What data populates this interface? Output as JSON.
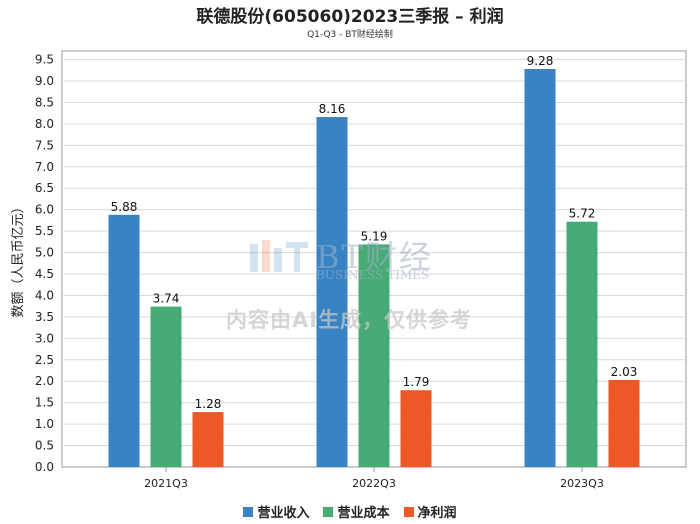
{
  "title": "联德股份(605060)2023三季报 – 利润",
  "subtitle": "Q1-Q3 - BT财经绘制",
  "watermark": {
    "brand": "BT财经",
    "brand_sub": "BUSINESS TIMES",
    "notice": "内容由AI生成，仅供参考"
  },
  "colors": {
    "营业收入": "#3783c3",
    "营业成本": "#46ab75",
    "净利润": "#ee5827"
  },
  "chart_data": {
    "type": "bar",
    "categories": [
      "2021Q3",
      "2022Q3",
      "2023Q3"
    ],
    "series": [
      {
        "name": "营业收入",
        "values": [
          5.88,
          8.16,
          9.28
        ]
      },
      {
        "name": "营业成本",
        "values": [
          3.74,
          5.19,
          5.72
        ]
      },
      {
        "name": "净利润",
        "values": [
          1.28,
          1.79,
          2.03
        ]
      }
    ],
    "ylabel": "数额（人民币亿元）",
    "xlabel": "",
    "ylim": [
      0,
      9.7
    ],
    "yticks": [
      "0.0",
      "0.5",
      "1.0",
      "1.5",
      "2.0",
      "2.5",
      "3.0",
      "3.5",
      "4.0",
      "4.5",
      "5.0",
      "5.5",
      "6.0",
      "6.5",
      "7.0",
      "7.5",
      "8.0",
      "8.5",
      "9.0",
      "9.5"
    ],
    "grid": true,
    "legend_position": "bottom"
  }
}
